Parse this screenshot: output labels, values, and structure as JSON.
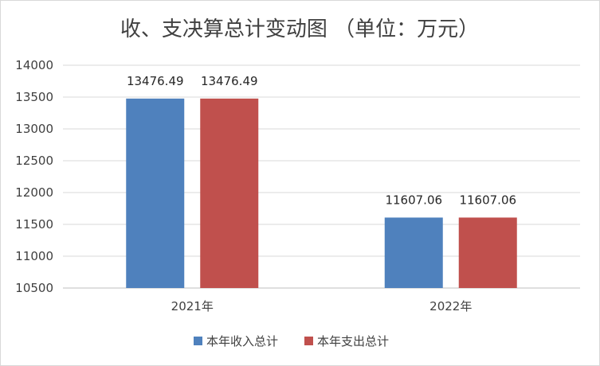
{
  "chart_data": {
    "type": "bar",
    "title": "收、支决算总计变动图 （单位：万元）",
    "categories": [
      "2021年",
      "2022年"
    ],
    "series": [
      {
        "name": "本年收入总计",
        "values": [
          13476.49,
          11607.06
        ],
        "labels": [
          "13476.49",
          "11607.06"
        ],
        "color": "#4F81BD"
      },
      {
        "name": "本年支出总计",
        "values": [
          13476.49,
          11607.06
        ],
        "labels": [
          "13476.49",
          "11607.06"
        ],
        "color": "#C0504D"
      }
    ],
    "xlabel": "",
    "ylabel": "",
    "ylim": [
      10500,
      14000
    ],
    "yticks": [
      10500,
      11000,
      11500,
      12000,
      12500,
      13000,
      13500,
      14000
    ],
    "grid": true,
    "legend": "bottom"
  }
}
